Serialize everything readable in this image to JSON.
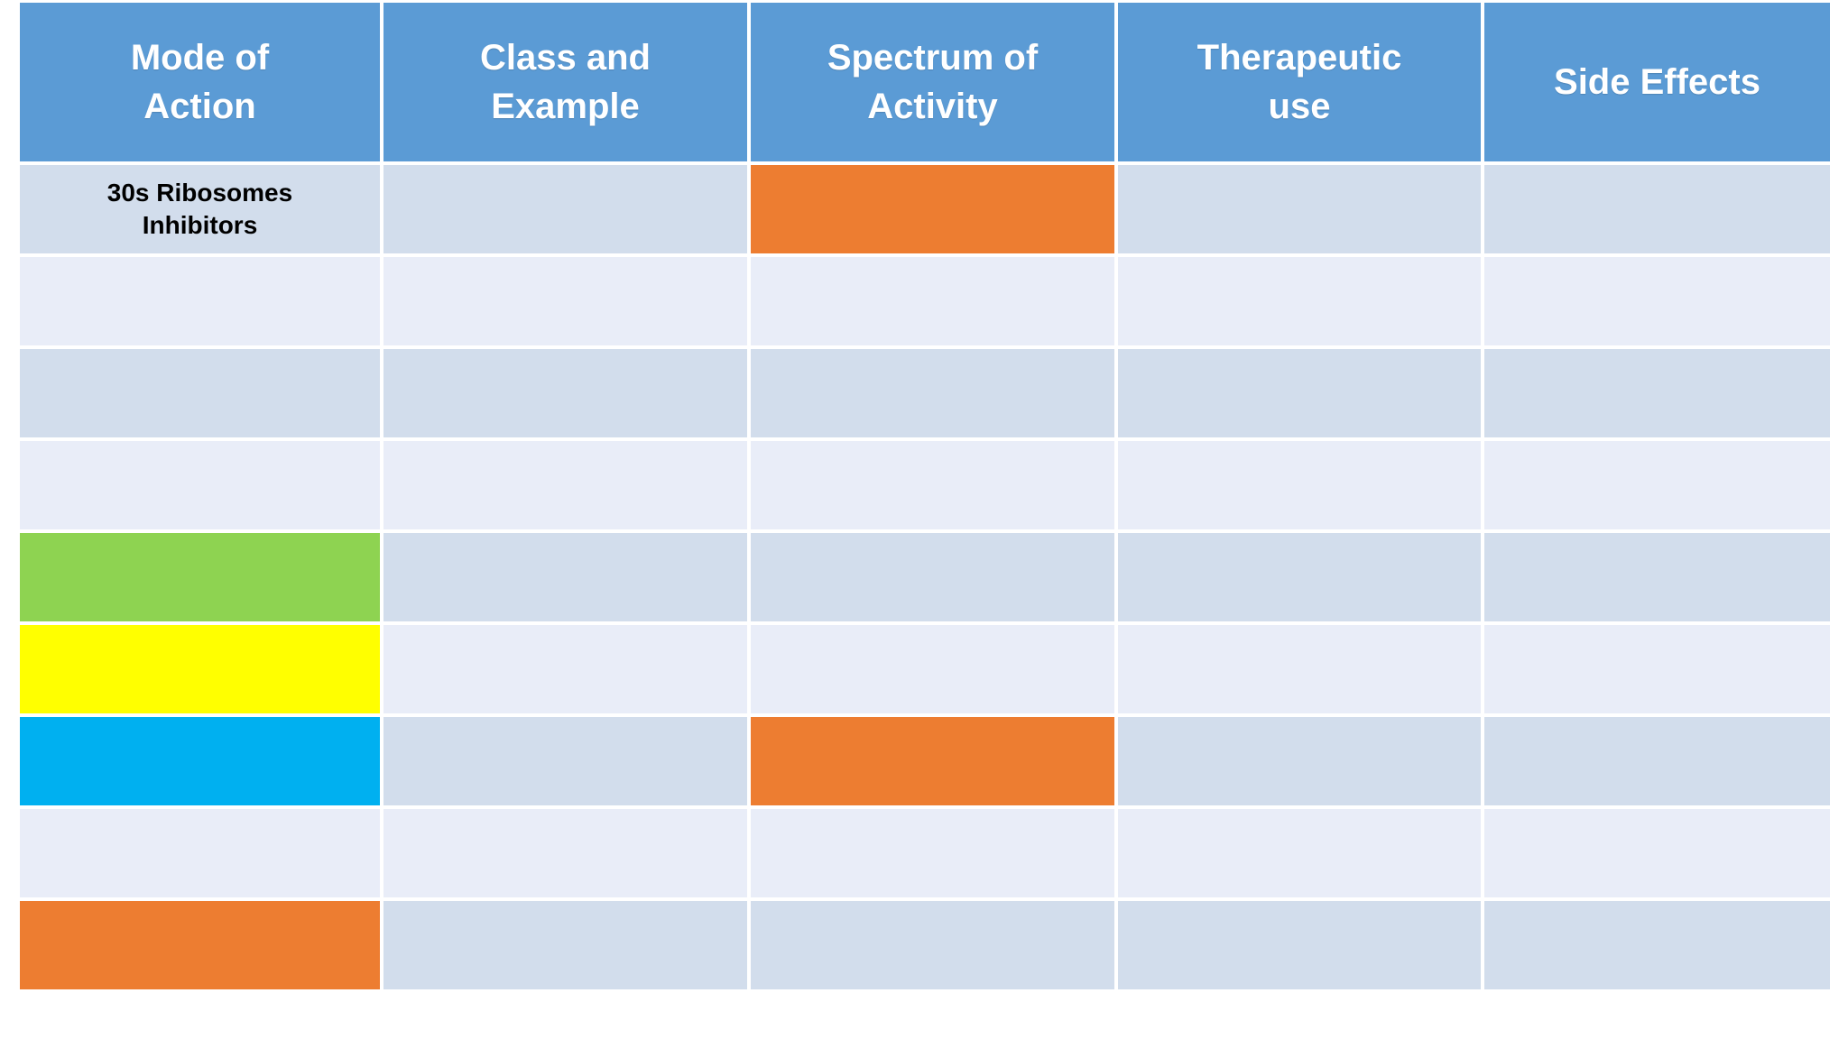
{
  "slide": {
    "colors": {
      "header": "#5B9BD5",
      "band_dark": "#D2DDEC",
      "band_light": "#E9EDF8",
      "orange": "#ED7D31",
      "green": "#8ED351",
      "yellow": "#FFFF00",
      "cyan": "#00B0F0",
      "header_text": "#FFFFFF",
      "cell_text": "#000000"
    },
    "table": {
      "columns": [
        "Mode of\nAction",
        "Class and\nExample",
        "Spectrum of\nActivity",
        "Therapeutic\nuse",
        "Side Effects"
      ],
      "rows": [
        {
          "cells": [
            {
              "text": "30s Ribosomes\nInhibitors",
              "fill": "dark"
            },
            {
              "text": "",
              "fill": "dark"
            },
            {
              "text": "",
              "fill": "orange"
            },
            {
              "text": "",
              "fill": "dark"
            },
            {
              "text": "",
              "fill": "dark"
            }
          ]
        },
        {
          "cells": [
            {
              "text": "",
              "fill": "light"
            },
            {
              "text": "",
              "fill": "light"
            },
            {
              "text": "",
              "fill": "light"
            },
            {
              "text": "",
              "fill": "light"
            },
            {
              "text": "",
              "fill": "light"
            }
          ]
        },
        {
          "cells": [
            {
              "text": "",
              "fill": "dark"
            },
            {
              "text": "",
              "fill": "dark"
            },
            {
              "text": "",
              "fill": "dark"
            },
            {
              "text": "",
              "fill": "dark"
            },
            {
              "text": "",
              "fill": "dark"
            }
          ]
        },
        {
          "cells": [
            {
              "text": "",
              "fill": "light"
            },
            {
              "text": "",
              "fill": "light"
            },
            {
              "text": "",
              "fill": "light"
            },
            {
              "text": "",
              "fill": "light"
            },
            {
              "text": "",
              "fill": "light"
            }
          ]
        },
        {
          "cells": [
            {
              "text": "",
              "fill": "green"
            },
            {
              "text": "",
              "fill": "dark"
            },
            {
              "text": "",
              "fill": "dark"
            },
            {
              "text": "",
              "fill": "dark"
            },
            {
              "text": "",
              "fill": "dark"
            }
          ]
        },
        {
          "cells": [
            {
              "text": "",
              "fill": "yellow"
            },
            {
              "text": "",
              "fill": "light"
            },
            {
              "text": "",
              "fill": "light"
            },
            {
              "text": "",
              "fill": "light"
            },
            {
              "text": "",
              "fill": "light"
            }
          ]
        },
        {
          "cells": [
            {
              "text": "",
              "fill": "cyan"
            },
            {
              "text": "",
              "fill": "dark"
            },
            {
              "text": "",
              "fill": "orange"
            },
            {
              "text": "",
              "fill": "dark"
            },
            {
              "text": "",
              "fill": "dark"
            }
          ]
        },
        {
          "cells": [
            {
              "text": "",
              "fill": "light"
            },
            {
              "text": "",
              "fill": "light"
            },
            {
              "text": "",
              "fill": "light"
            },
            {
              "text": "",
              "fill": "light"
            },
            {
              "text": "",
              "fill": "light"
            }
          ]
        },
        {
          "cells": [
            {
              "text": "",
              "fill": "orange"
            },
            {
              "text": "",
              "fill": "dark"
            },
            {
              "text": "",
              "fill": "dark"
            },
            {
              "text": "",
              "fill": "dark"
            },
            {
              "text": "",
              "fill": "dark"
            }
          ]
        }
      ]
    }
  }
}
